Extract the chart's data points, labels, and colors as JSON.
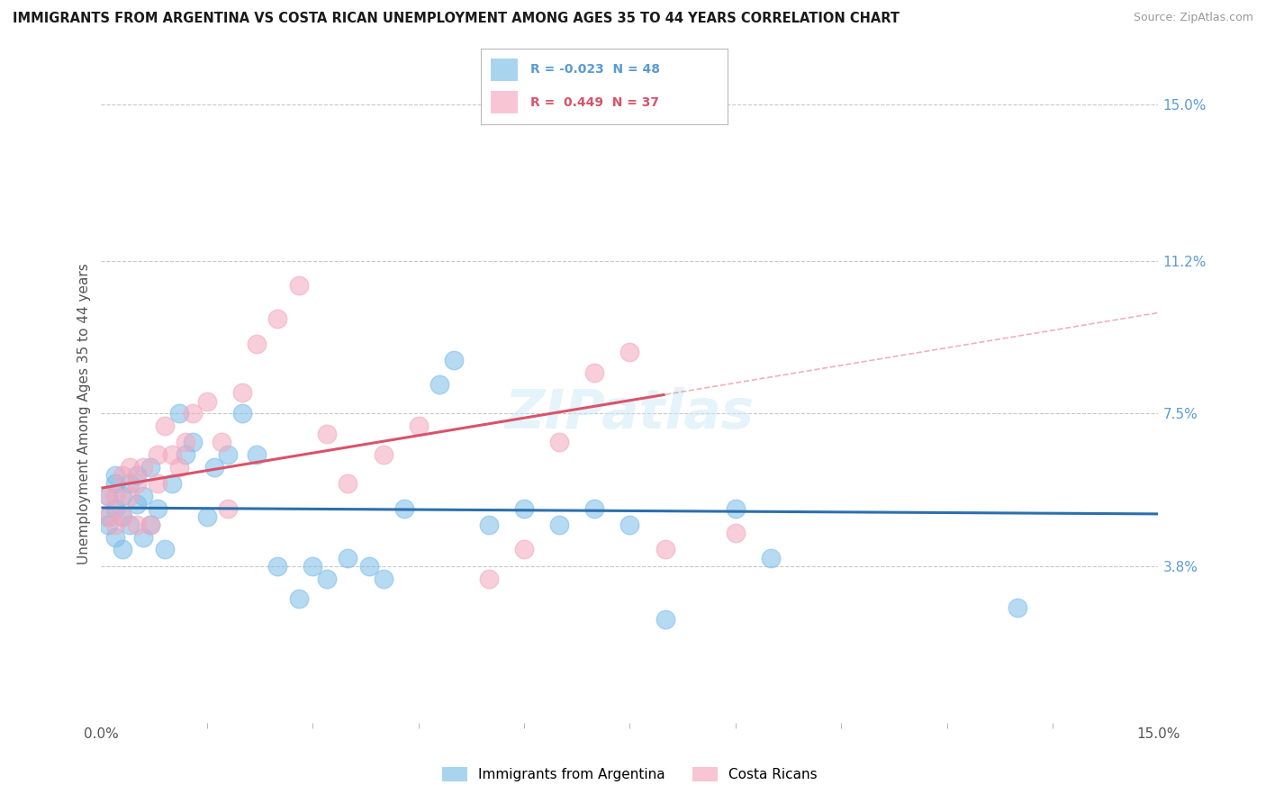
{
  "title": "IMMIGRANTS FROM ARGENTINA VS COSTA RICAN UNEMPLOYMENT AMONG AGES 35 TO 44 YEARS CORRELATION CHART",
  "source": "Source: ZipAtlas.com",
  "ylabel": "Unemployment Among Ages 35 to 44 years",
  "xlim": [
    0.0,
    0.15
  ],
  "ylim": [
    0.0,
    0.15
  ],
  "ytick_positions": [
    0.038,
    0.075,
    0.112,
    0.15
  ],
  "ytick_labels": [
    "3.8%",
    "7.5%",
    "11.2%",
    "15.0%"
  ],
  "blue_scatter_color": "#7bbde8",
  "pink_scatter_color": "#f4a7be",
  "blue_line_color": "#2c6fad",
  "pink_line_color": "#d9536a",
  "R_blue": -0.023,
  "N_blue": 48,
  "R_pink": 0.449,
  "N_pink": 37,
  "watermark": "ZIPatlas",
  "blue_x": [
    0.001,
    0.001,
    0.001,
    0.002,
    0.002,
    0.002,
    0.002,
    0.003,
    0.003,
    0.003,
    0.004,
    0.004,
    0.005,
    0.005,
    0.006,
    0.006,
    0.007,
    0.007,
    0.008,
    0.009,
    0.01,
    0.011,
    0.012,
    0.013,
    0.015,
    0.016,
    0.018,
    0.02,
    0.022,
    0.025,
    0.028,
    0.03,
    0.032,
    0.035,
    0.038,
    0.04,
    0.043,
    0.048,
    0.05,
    0.055,
    0.06,
    0.065,
    0.07,
    0.075,
    0.08,
    0.09,
    0.095,
    0.13
  ],
  "blue_y": [
    0.05,
    0.055,
    0.048,
    0.045,
    0.052,
    0.058,
    0.06,
    0.05,
    0.055,
    0.042,
    0.058,
    0.048,
    0.053,
    0.06,
    0.055,
    0.045,
    0.048,
    0.062,
    0.052,
    0.042,
    0.058,
    0.075,
    0.065,
    0.068,
    0.05,
    0.062,
    0.065,
    0.075,
    0.065,
    0.038,
    0.03,
    0.038,
    0.035,
    0.04,
    0.038,
    0.035,
    0.052,
    0.082,
    0.088,
    0.048,
    0.052,
    0.048,
    0.052,
    0.048,
    0.025,
    0.052,
    0.04,
    0.028
  ],
  "pink_x": [
    0.001,
    0.001,
    0.002,
    0.002,
    0.003,
    0.003,
    0.004,
    0.004,
    0.005,
    0.005,
    0.006,
    0.007,
    0.008,
    0.008,
    0.009,
    0.01,
    0.011,
    0.012,
    0.013,
    0.015,
    0.017,
    0.018,
    0.02,
    0.022,
    0.025,
    0.028,
    0.032,
    0.035,
    0.04,
    0.045,
    0.055,
    0.06,
    0.065,
    0.07,
    0.075,
    0.08,
    0.09
  ],
  "pink_y": [
    0.05,
    0.055,
    0.048,
    0.055,
    0.05,
    0.06,
    0.055,
    0.062,
    0.048,
    0.058,
    0.062,
    0.048,
    0.058,
    0.065,
    0.072,
    0.065,
    0.062,
    0.068,
    0.075,
    0.078,
    0.068,
    0.052,
    0.08,
    0.092,
    0.098,
    0.106,
    0.07,
    0.058,
    0.065,
    0.072,
    0.035,
    0.042,
    0.068,
    0.085,
    0.09,
    0.042,
    0.046
  ]
}
